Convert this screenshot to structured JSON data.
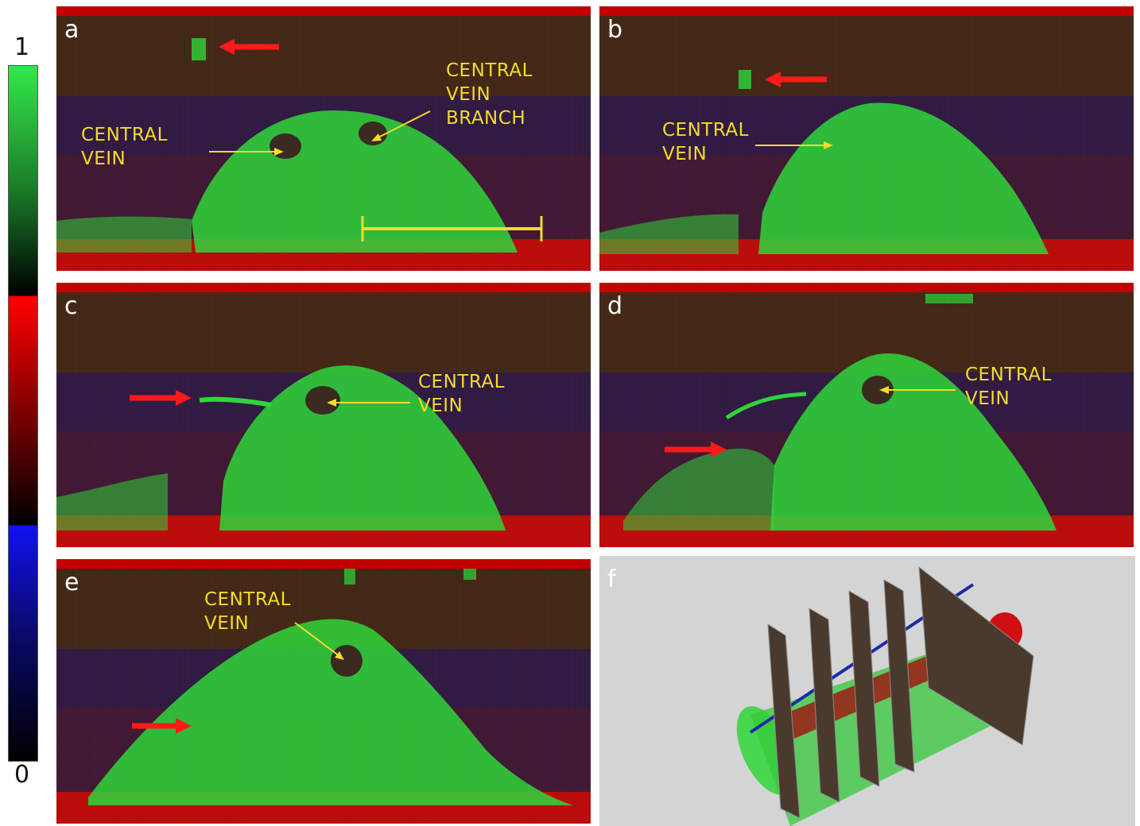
{
  "colorbar": {
    "max_label": "1",
    "min_label": "0",
    "stops": [
      "#33e84a",
      "#000000",
      "#ff0000",
      "#000000",
      "#1111ee",
      "#000000"
    ]
  },
  "panels": {
    "a": {
      "letter": "a",
      "label_1": "CENTRAL\nVEIN",
      "label_2": "CENTRAL\nVEIN\nBRANCH"
    },
    "b": {
      "letter": "b",
      "label_1": "CENTRAL\nVEIN"
    },
    "c": {
      "letter": "c",
      "label_1": "CENTRAL\nVEIN"
    },
    "d": {
      "letter": "d",
      "label_1": "CENTRAL\nVEIN"
    },
    "e": {
      "letter": "e",
      "label_1": "CENTRAL\nVEIN"
    },
    "f": {
      "letter": "f"
    }
  },
  "colors": {
    "tissue": "#2fd63a",
    "arrow_red": "#ff1a1a",
    "annotation": "#f2dc2a",
    "scalebar": "#f2dc2a"
  }
}
